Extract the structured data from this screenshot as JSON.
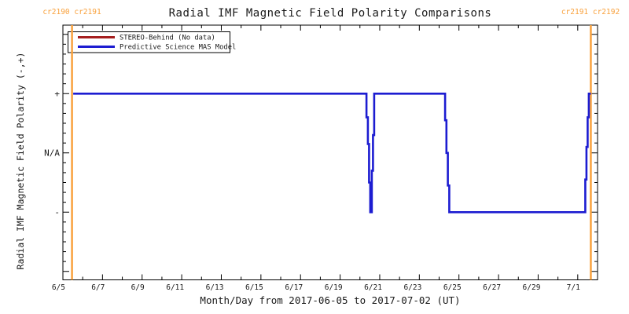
{
  "title": "Radial IMF Magnetic Field Polarity Comparisons",
  "annotations": {
    "left_carrington_label": "cr2190 cr2191",
    "right_carrington_label": "cr2191 cr2192"
  },
  "legend": {
    "items": [
      {
        "label": "STEREO-Behind (No data)",
        "color": "#A51E1E"
      },
      {
        "label": "Predictive Science MAS Model",
        "color": "#1C1CD1"
      }
    ]
  },
  "colors": {
    "carrington_line": "#F9A13C",
    "stereo_red": "#A51E1E",
    "mas_blue": "#1C1CD1",
    "axis": "#000000",
    "background": "#FFFFFF"
  },
  "chart_data": {
    "type": "line",
    "title": "Radial IMF Magnetic Field Polarity Comparisons",
    "xlabel": "Month/Day from 2017-06-05 to 2017-07-02 (UT)",
    "ylabel": "Radial IMF Magnetic Field Polarity (-,+)",
    "x_start_date": "2017-06-05",
    "x_end_date": "2017-07-02",
    "x_days_total": 27,
    "grid": false,
    "legend_position": "top-left",
    "x_ticks": [
      {
        "label": "6/5",
        "day": 0
      },
      {
        "label": "6/7",
        "day": 2
      },
      {
        "label": "6/9",
        "day": 4
      },
      {
        "label": "6/11",
        "day": 6
      },
      {
        "label": "6/13",
        "day": 8
      },
      {
        "label": "6/15",
        "day": 10
      },
      {
        "label": "6/17",
        "day": 12
      },
      {
        "label": "6/19",
        "day": 14
      },
      {
        "label": "6/21",
        "day": 16
      },
      {
        "label": "6/23",
        "day": 18
      },
      {
        "label": "6/25",
        "day": 20
      },
      {
        "label": "6/27",
        "day": 22
      },
      {
        "label": "6/29",
        "day": 24
      },
      {
        "label": "7/1",
        "day": 26
      }
    ],
    "y_ticks": [
      {
        "label": "+",
        "value": 1
      },
      {
        "label": "N/A",
        "value": 0
      },
      {
        "label": "-",
        "value": -1
      }
    ],
    "ylim": [
      -1.35,
      1.35
    ],
    "carrington_boundaries_days": [
      0.46,
      26.66
    ],
    "series": [
      {
        "name": "STEREO-Behind (No data)",
        "color": "#A51E1E",
        "points": []
      },
      {
        "name": "Predictive Science MAS Model",
        "color": "#1C1CD1",
        "points": [
          [
            0.52,
            1
          ],
          [
            15.33,
            1
          ],
          [
            15.33,
            0.6
          ],
          [
            15.4,
            0.6
          ],
          [
            15.4,
            0.15
          ],
          [
            15.46,
            0.15
          ],
          [
            15.46,
            -0.5
          ],
          [
            15.52,
            -0.5
          ],
          [
            15.52,
            -1
          ],
          [
            15.6,
            -1
          ],
          [
            15.6,
            -0.3
          ],
          [
            15.66,
            -0.3
          ],
          [
            15.66,
            0.3
          ],
          [
            15.72,
            0.3
          ],
          [
            15.72,
            1
          ],
          [
            19.3,
            1
          ],
          [
            19.3,
            0.55
          ],
          [
            19.37,
            0.55
          ],
          [
            19.37,
            0
          ],
          [
            19.44,
            0
          ],
          [
            19.44,
            -0.55
          ],
          [
            19.51,
            -0.55
          ],
          [
            19.51,
            -1
          ],
          [
            26.38,
            -1
          ],
          [
            26.38,
            -0.45
          ],
          [
            26.44,
            -0.45
          ],
          [
            26.44,
            0.1
          ],
          [
            26.5,
            0.1
          ],
          [
            26.5,
            0.6
          ],
          [
            26.56,
            0.6
          ],
          [
            26.56,
            1
          ],
          [
            26.66,
            1
          ]
        ]
      }
    ]
  }
}
